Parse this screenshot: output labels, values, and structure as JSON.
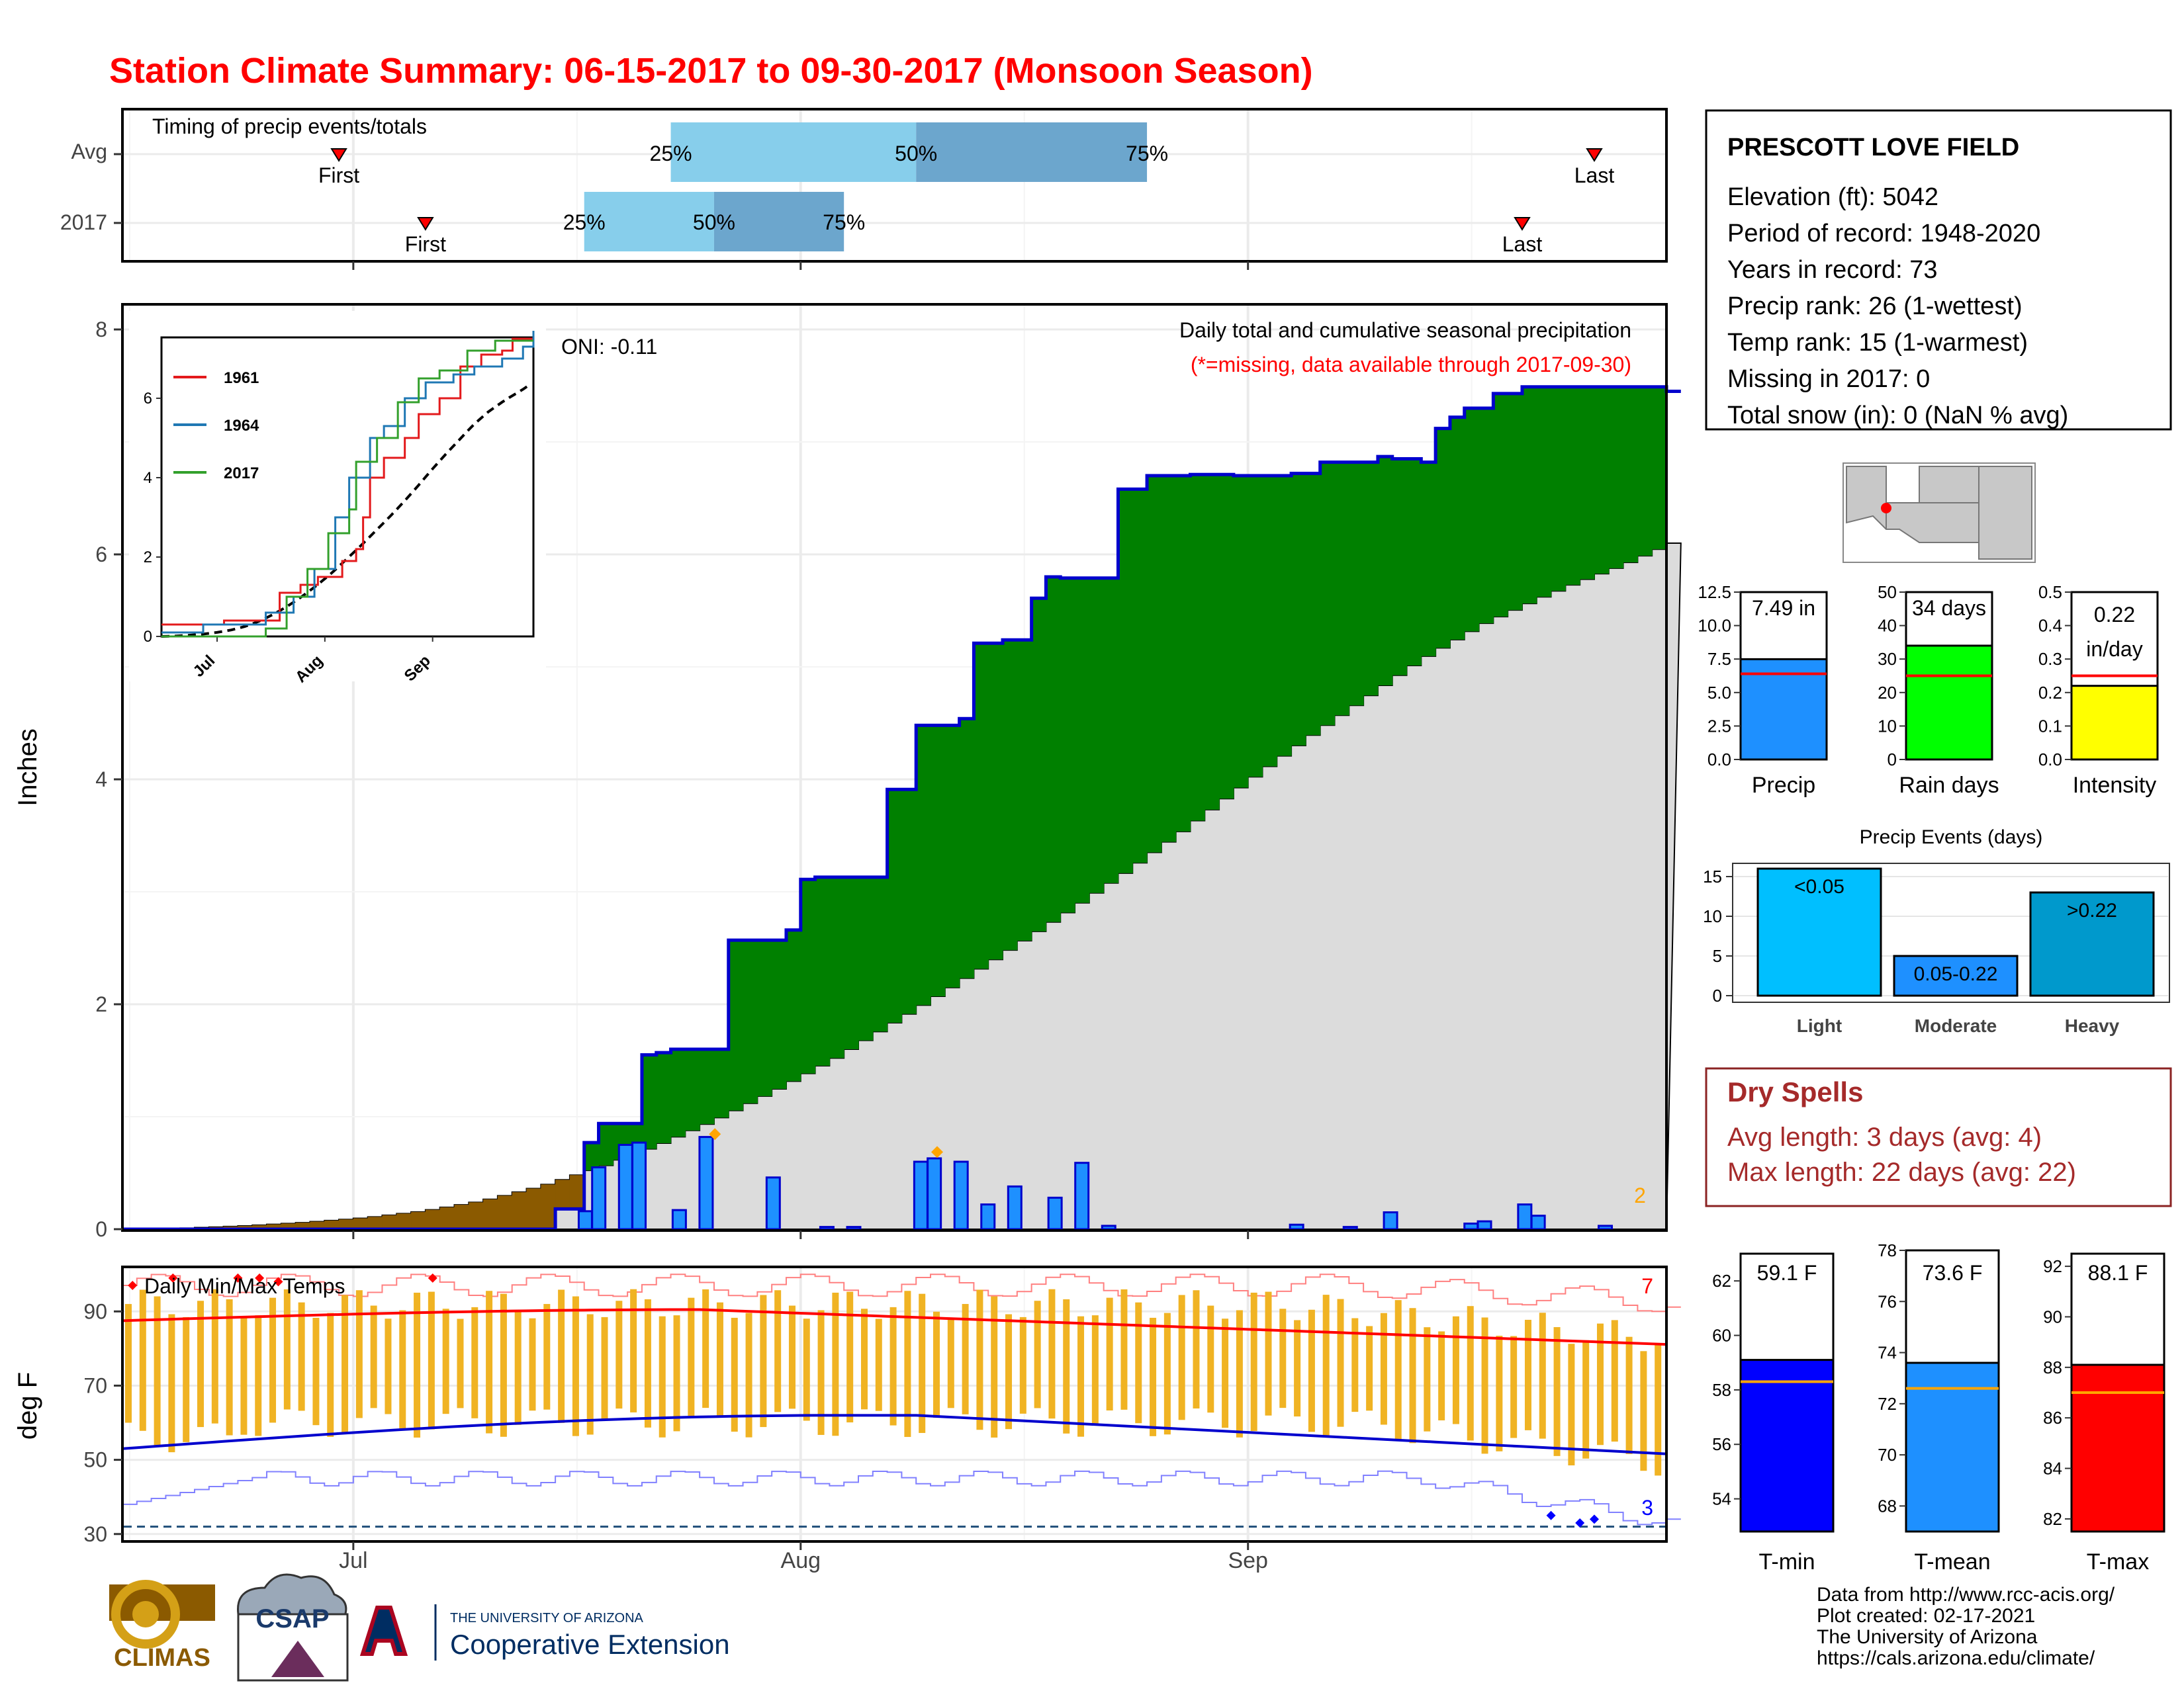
{
  "title": "Station Climate Summary: 06-15-2017 to 09-30-2017 (Monsoon Season)",
  "timing": {
    "label": "Timing of precip events/totals",
    "rows": [
      {
        "name": "Avg",
        "first_label": "First",
        "last_label": "Last",
        "first": "2017-06-30",
        "last": "2017-09-25",
        "q25": "2017-07-23",
        "q50": "2017-08-09",
        "q75": "2017-08-25"
      },
      {
        "name": "2017",
        "first_label": "First",
        "last_label": "Last",
        "first": "2017-07-06",
        "last": "2017-09-20",
        "q25": "2017-07-17",
        "q50": "2017-07-26",
        "q75": "2017-08-04"
      }
    ],
    "pct_labels": [
      "25%",
      "50%",
      "75%"
    ]
  },
  "station": {
    "name": "PRESCOTT LOVE FIELD",
    "lines": [
      "Elevation (ft): 5042",
      "Period of record: 1948-2020",
      "Years in record: 73",
      "Precip rank: 26 (1-wettest)",
      "Temp rank: 15 (1-warmest)",
      "Missing in 2017: 0",
      "Total snow (in): 0 (NaN % avg)"
    ]
  },
  "main_chart": {
    "ylabel": "Inches",
    "note": "Daily total and cumulative seasonal precipitation",
    "missing_note": "(*=missing, data available through 2017-09-30)",
    "oni": "ONI: -0.11",
    "count_label": "2",
    "y_ticks": [
      "0",
      "2",
      "4",
      "6",
      "8"
    ],
    "colors": {
      "above": "#008000",
      "below": "#8B5A00",
      "avg_fill": "#dcdcdc",
      "bars": "#1E90FF",
      "line": "#0000CD"
    }
  },
  "inset": {
    "legend": [
      "1961",
      "1964",
      "2017"
    ],
    "colors": [
      "#e31a1c",
      "#1f78b4",
      "#33a02c"
    ],
    "y_ticks": [
      "0",
      "2",
      "4",
      "6"
    ],
    "x_ticks": [
      "Jul",
      "Aug",
      "Sep"
    ]
  },
  "temp_chart": {
    "label": "Daily Min/Max Temps",
    "ylabel": "deg F",
    "y_ticks": [
      "30",
      "50",
      "70",
      "90"
    ],
    "record_high_count": "7",
    "record_low_count": "3"
  },
  "x_axis": {
    "labels": [
      "Jul",
      "Aug",
      "Sep"
    ]
  },
  "bars_top": [
    {
      "value_label": "7.49 in",
      "name": "Precip",
      "ticks": [
        "0.0",
        "2.5",
        "5.0",
        "7.5",
        "10.0",
        "12.5"
      ],
      "color": "#1E90FF"
    },
    {
      "value_label": "34 days",
      "name": "Rain days",
      "ticks": [
        "0",
        "10",
        "20",
        "30",
        "40",
        "50"
      ],
      "color": "#00FF00"
    },
    {
      "value_label_1": "0.22",
      "value_label_2": "in/day",
      "name": "Intensity",
      "ticks": [
        "0.0",
        "0.1",
        "0.2",
        "0.3",
        "0.4",
        "0.5"
      ],
      "color": "#FFFF00"
    }
  ],
  "events": {
    "title": "Precip Events (days)",
    "ticks": [
      "0",
      "5",
      "10",
      "15"
    ],
    "categories": [
      "Light",
      "Moderate",
      "Heavy"
    ],
    "bar_labels": [
      "<0.05",
      "0.05-0.22",
      ">0.22"
    ]
  },
  "dry_spells": {
    "title": "Dry Spells",
    "avg_line": "Avg length: 3 days (avg: 4)",
    "max_line": "Max length: 22 days (avg: 22)"
  },
  "temp_bars": [
    {
      "value_label": "59.1 F",
      "name": "T-min",
      "ticks": [
        "54",
        "56",
        "58",
        "60",
        "62"
      ],
      "color": "#0000FF"
    },
    {
      "value_label": "73.6 F",
      "name": "T-mean",
      "ticks": [
        "68",
        "70",
        "72",
        "74",
        "76",
        "78"
      ],
      "color": "#1E90FF"
    },
    {
      "value_label": "88.1 F",
      "name": "T-max",
      "ticks": [
        "82",
        "84",
        "86",
        "88",
        "90",
        "92"
      ],
      "color": "#FF0000"
    }
  ],
  "footer": {
    "lines": [
      "Data from http://www.rcc-acis.org/",
      "Plot created: 02-17-2021",
      "The University of Arizona",
      "https://cals.arizona.edu/climate/"
    ],
    "logo_climas": "CLIMAS",
    "logo_csap": "CSAP",
    "ua_small": "THE UNIVERSITY OF ARIZONA",
    "ua_big": "Cooperative Extension"
  },
  "chart_data": {
    "type": "area",
    "title": "Daily total and cumulative seasonal precipitation",
    "ylabel": "Inches",
    "x_range": [
      "2017-06-15",
      "2017-09-30"
    ],
    "ylim": [
      0,
      8.2
    ],
    "series": [
      {
        "name": "2017",
        "cumulative_points": [
          [
            0,
            0
          ],
          [
            34,
            0
          ],
          [
            35,
            0.18
          ],
          [
            37,
            0.77
          ],
          [
            38,
            0.94
          ],
          [
            41,
            1.55
          ],
          [
            43,
            1.57
          ],
          [
            44,
            1.6
          ],
          [
            48,
            1.72
          ],
          [
            49,
            2.57
          ],
          [
            53,
            2.66
          ],
          [
            54,
            3.11
          ],
          [
            56,
            3.13
          ],
          [
            61,
            3.14
          ],
          [
            62,
            3.91
          ],
          [
            64,
            4.48
          ],
          [
            67,
            4.54
          ],
          [
            69,
            5.21
          ],
          [
            71,
            5.24
          ],
          [
            73,
            5.61
          ],
          [
            74,
            5.8
          ],
          [
            76,
            5.79
          ],
          [
            80,
            6.58
          ],
          [
            82,
            6.68
          ],
          [
            83,
            6.7
          ],
          [
            86,
            6.71
          ],
          [
            90,
            6.7
          ],
          [
            94,
            6.72
          ],
          [
            97,
            6.82
          ],
          [
            101,
            6.87
          ],
          [
            102,
            6.85
          ],
          [
            105,
            6.82
          ],
          [
            106,
            7.12
          ],
          [
            107,
            7.22
          ],
          [
            108,
            7.3
          ],
          [
            110,
            7.43
          ],
          [
            113,
            7.49
          ],
          [
            120,
            7.49
          ],
          [
            125,
            7.45
          ]
        ]
      },
      {
        "name": "Avg",
        "cumulative_points": [
          [
            0,
            0
          ],
          [
            5,
            0.01
          ],
          [
            10,
            0.03
          ],
          [
            15,
            0.06
          ],
          [
            20,
            0.1
          ],
          [
            25,
            0.16
          ],
          [
            30,
            0.25
          ],
          [
            35,
            0.38
          ],
          [
            40,
            0.55
          ],
          [
            45,
            0.75
          ],
          [
            50,
            0.98
          ],
          [
            55,
            1.24
          ],
          [
            60,
            1.52
          ],
          [
            65,
            1.84
          ],
          [
            70,
            2.16
          ],
          [
            75,
            2.5
          ],
          [
            80,
            2.84
          ],
          [
            85,
            3.2
          ],
          [
            90,
            3.58
          ],
          [
            95,
            3.98
          ],
          [
            100,
            4.36
          ],
          [
            105,
            4.72
          ],
          [
            108,
            4.94
          ],
          [
            110,
            5.08
          ],
          [
            115,
            5.38
          ],
          [
            120,
            5.62
          ],
          [
            123,
            5.75
          ],
          [
            127,
            5.91
          ],
          [
            131,
            6.1
          ]
        ]
      }
    ],
    "daily_bars": [
      [
        0,
        0
      ],
      [
        34,
        0.16
      ],
      [
        35,
        0.55
      ],
      [
        37,
        0.75
      ],
      [
        38,
        0.77
      ],
      [
        41,
        0.17
      ],
      [
        43,
        0.82
      ],
      [
        48,
        0.46
      ],
      [
        52,
        0.02
      ],
      [
        54,
        0.02
      ],
      [
        59,
        0.6
      ],
      [
        60,
        0.63
      ],
      [
        62,
        0.6
      ],
      [
        64,
        0.22
      ],
      [
        66,
        0.38
      ],
      [
        69,
        0.28
      ],
      [
        71,
        0.59
      ],
      [
        73,
        0.03
      ],
      [
        87,
        0.04
      ],
      [
        91,
        0.02
      ],
      [
        94,
        0.15
      ],
      [
        100,
        0.05
      ],
      [
        101,
        0.07
      ],
      [
        104,
        0.22
      ],
      [
        105,
        0.12
      ],
      [
        110,
        0.03
      ]
    ],
    "temps": {
      "ylim": [
        28,
        102
      ],
      "avg_max": 86,
      "avg_min": 53
    },
    "precip_events_days": {
      "categories": [
        "Light",
        "Moderate",
        "Heavy"
      ],
      "values": [
        16,
        5,
        13
      ]
    }
  }
}
